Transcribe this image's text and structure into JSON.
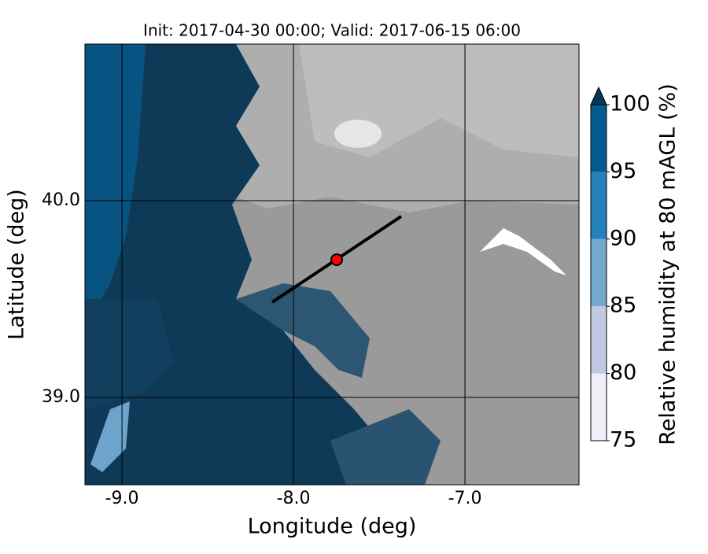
{
  "chart_data": {
    "type": "map",
    "title": "Init: 2017-04-30 00:00; Valid: 2017-06-15 06:00",
    "x_label": "Longitude (deg)",
    "y_label": "Latitude (deg)",
    "xlim": [
      -9.216,
      -6.335
    ],
    "ylim": [
      38.556,
      40.796
    ],
    "xticks": [
      {
        "value": -9,
        "label": "-9.0"
      },
      {
        "value": -8,
        "label": "-8.0"
      },
      {
        "value": -7,
        "label": "-7.0"
      }
    ],
    "yticks": [
      {
        "value": 39,
        "label": "39.0"
      },
      {
        "value": 40,
        "label": "40.0"
      }
    ],
    "grid": true,
    "point": {
      "lon": -7.748,
      "lat": 39.7,
      "color": "#ff0000"
    },
    "track": {
      "lon": [
        -8.124,
        -7.372
      ],
      "lat": [
        39.484,
        39.92
      ],
      "color": "#000000"
    },
    "colorbar": {
      "label": "Relative humidity at 80 mAGL (%)",
      "ticks": [
        75,
        80,
        85,
        90,
        95,
        100
      ],
      "colors": [
        "#f0eef6",
        "#bfc9e2",
        "#74a9cf",
        "#2381bc",
        "#045a8d"
      ],
      "extend_color": "#023858"
    }
  }
}
